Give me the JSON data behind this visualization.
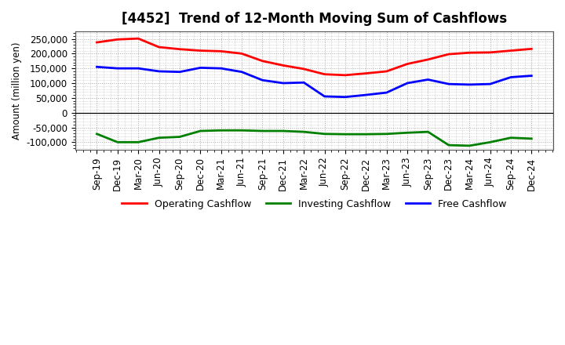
{
  "title": "[4452]  Trend of 12-Month Moving Sum of Cashflows",
  "ylabel": "Amount (million yen)",
  "ylim": [
    -125000,
    275000
  ],
  "yticks": [
    -100000,
    -50000,
    0,
    50000,
    100000,
    150000,
    200000,
    250000
  ],
  "background_color": "#ffffff",
  "plot_bg_color": "#ffffff",
  "grid_color": "#aaaaaa",
  "x_labels": [
    "Sep-19",
    "Dec-19",
    "Mar-20",
    "Jun-20",
    "Sep-20",
    "Dec-20",
    "Mar-21",
    "Jun-21",
    "Sep-21",
    "Dec-21",
    "Mar-22",
    "Jun-22",
    "Sep-22",
    "Dec-22",
    "Mar-23",
    "Jun-23",
    "Sep-23",
    "Dec-23",
    "Mar-24",
    "Jun-24",
    "Sep-24",
    "Dec-24"
  ],
  "operating": [
    238000,
    248000,
    251000,
    222000,
    215000,
    210000,
    208000,
    200000,
    175000,
    160000,
    148000,
    130000,
    127000,
    133000,
    140000,
    165000,
    180000,
    198000,
    203000,
    204000,
    210000,
    216000
  ],
  "investing": [
    -72000,
    -100000,
    -100000,
    -85000,
    -82000,
    -62000,
    -60000,
    -60000,
    -62000,
    -62000,
    -65000,
    -72000,
    -73000,
    -73000,
    -72000,
    -68000,
    -65000,
    -110000,
    -112000,
    -100000,
    -85000,
    -88000
  ],
  "free": [
    155000,
    150000,
    150000,
    140000,
    138000,
    152000,
    150000,
    138000,
    110000,
    100000,
    102000,
    55000,
    53000,
    60000,
    68000,
    100000,
    112000,
    97000,
    95000,
    97000,
    120000,
    125000
  ],
  "operating_color": "#ff0000",
  "investing_color": "#008000",
  "free_color": "#0000ff",
  "line_width": 2.0,
  "title_fontsize": 12,
  "axis_fontsize": 8.5,
  "legend_fontsize": 9
}
